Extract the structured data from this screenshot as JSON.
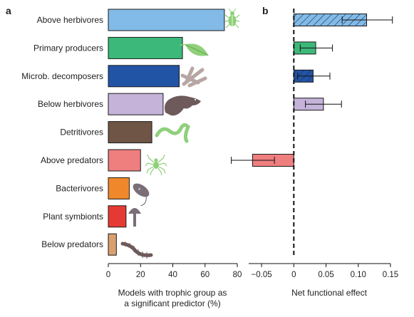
{
  "chart_data": [
    {
      "panel": "a",
      "type": "bar",
      "orientation": "horizontal",
      "categories": [
        "Above herbivores",
        "Primary producers",
        "Microb. decomposers",
        "Below herbivores",
        "Detritivores",
        "Above predators",
        "Bacterivores",
        "Plant symbionts",
        "Below predators"
      ],
      "values": [
        72,
        46,
        44,
        34,
        27,
        20,
        13,
        11,
        5
      ],
      "colors": [
        "#82bbe8",
        "#3cb97a",
        "#2254a6",
        "#c5b3da",
        "#6f5545",
        "#ef7e7e",
        "#f0882b",
        "#e53a33",
        "#d9a06e"
      ],
      "xlabel_line1": "Models with trophic group as",
      "xlabel_line2": "a significant predictor (%)",
      "xlim": [
        0,
        80
      ],
      "xticks": [
        0,
        20,
        40,
        60,
        80
      ],
      "grid": false,
      "icons": [
        "beetle-icon",
        "leaf-icon",
        "hyphae-icon",
        "mole-icon",
        "earthworm-icon",
        "spider-icon",
        "protist-icon",
        "mushroom-icon",
        "centipede-icon"
      ]
    },
    {
      "panel": "b",
      "type": "bar",
      "orientation": "horizontal",
      "categories": [
        "Above herbivores",
        "Primary producers",
        "Microb. decomposers",
        "Below herbivores",
        "Above predators"
      ],
      "values": [
        0.113,
        0.034,
        0.03,
        0.046,
        -0.064
      ],
      "err_low": [
        0.075,
        0.01,
        0.006,
        0.018,
        -0.097
      ],
      "err_high": [
        0.153,
        0.06,
        0.056,
        0.074,
        -0.03
      ],
      "colors": [
        "#82bbe8",
        "#3cb97a",
        "#2254a6",
        "#c5b3da",
        "#ef7e7e"
      ],
      "hatched": [
        true,
        false,
        true,
        false,
        false
      ],
      "xlabel": "Net functional effect",
      "xlim": [
        -0.07,
        0.15
      ],
      "xticks": [
        -0.05,
        0,
        0.05,
        0.1,
        0.15
      ],
      "xtick_labels": [
        "−0.05",
        "0",
        "0.05",
        "0.10",
        "0.15"
      ],
      "zero_line": "dashed"
    }
  ]
}
